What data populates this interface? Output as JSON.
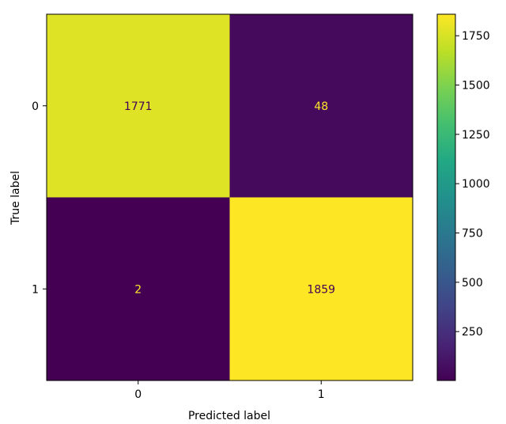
{
  "chart_data": {
    "type": "heatmap",
    "title": "",
    "xlabel": "Predicted label",
    "ylabel": "True label",
    "x_categories": [
      "0",
      "1"
    ],
    "y_categories": [
      "0",
      "1"
    ],
    "matrix": [
      [
        1771,
        48
      ],
      [
        2,
        1859
      ]
    ],
    "colormap": "viridis",
    "colorbar": {
      "ticks": [
        250,
        500,
        750,
        1000,
        1250,
        1500,
        1750
      ],
      "range": [
        2,
        1859
      ]
    },
    "colors": {
      "high": "#fde725",
      "high_alt": "#dde318",
      "low": "#440154",
      "low_alt": "#440256",
      "text_on_dark": "#fde725",
      "text_on_light": "#440154"
    }
  }
}
